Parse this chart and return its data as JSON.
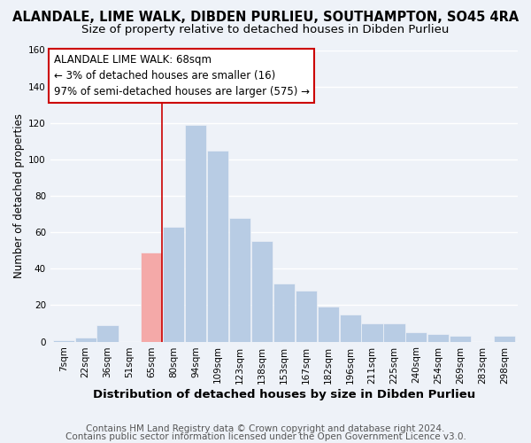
{
  "title": "ALANDALE, LIME WALK, DIBDEN PURLIEU, SOUTHAMPTON, SO45 4RA",
  "subtitle": "Size of property relative to detached houses in Dibden Purlieu",
  "xlabel": "Distribution of detached houses by size in Dibden Purlieu",
  "ylabel": "Number of detached properties",
  "bar_labels": [
    "7sqm",
    "22sqm",
    "36sqm",
    "51sqm",
    "65sqm",
    "80sqm",
    "94sqm",
    "109sqm",
    "123sqm",
    "138sqm",
    "153sqm",
    "167sqm",
    "182sqm",
    "196sqm",
    "211sqm",
    "225sqm",
    "240sqm",
    "254sqm",
    "269sqm",
    "283sqm",
    "298sqm"
  ],
  "bar_values": [
    1,
    2,
    9,
    0,
    49,
    63,
    119,
    105,
    68,
    55,
    32,
    28,
    19,
    15,
    10,
    10,
    5,
    4,
    3,
    0,
    3
  ],
  "bar_color": "#b8cce4",
  "highlight_bar_color": "#f4a9a8",
  "highlight_index": 4,
  "annotation_line1": "ALANDALE LIME WALK: 68sqm",
  "annotation_line2": "← 3% of detached houses are smaller (16)",
  "annotation_line3": "97% of semi-detached houses are larger (575) →",
  "annotation_box_edgecolor": "#cc0000",
  "vline_color": "#cc0000",
  "ylim": [
    0,
    160
  ],
  "yticks": [
    0,
    20,
    40,
    60,
    80,
    100,
    120,
    140,
    160
  ],
  "footer1": "Contains HM Land Registry data © Crown copyright and database right 2024.",
  "footer2": "Contains public sector information licensed under the Open Government Licence v3.0.",
  "background_color": "#eef2f8",
  "grid_color": "#ffffff",
  "title_fontsize": 10.5,
  "subtitle_fontsize": 9.5,
  "xlabel_fontsize": 9.5,
  "ylabel_fontsize": 8.5,
  "tick_fontsize": 7.5,
  "annotation_fontsize": 8.5,
  "footer_fontsize": 7.5
}
